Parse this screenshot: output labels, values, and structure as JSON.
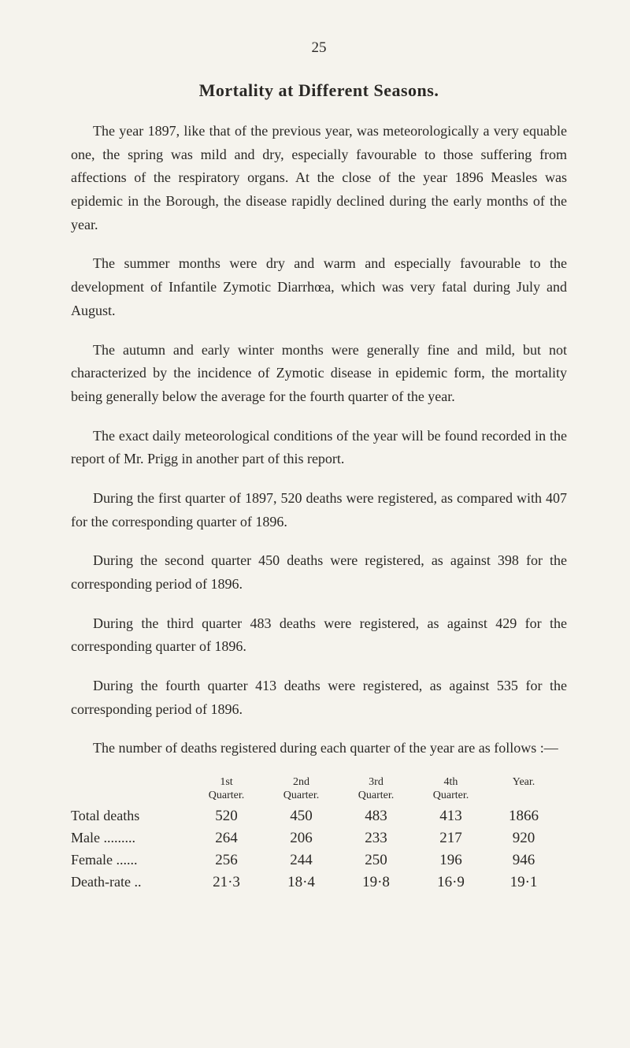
{
  "page_number": "25",
  "title": "Mortality at Different Seasons.",
  "paragraphs": [
    "The year 1897, like that of the previous year, was meteoro­logically a very equable one, the spring was mild and dry, especially favourable to those suffering from affections of the respiratory organs. At the close of the year 1896 Measles was epidemic in the Borough, the disease rapidly declined during the early months of the year.",
    "The summer months were dry and warm and especially favourable to the development of Infantile Zymotic Diarrhœa, which was very fatal during July and August.",
    "The autumn and early winter months were generally fine and mild, but not characterized by the incidence of Zymotic disease in epidemic form, the mortality being generally below the average for the fourth quarter of the year.",
    "The exact daily meteorological conditions of the year will be found recorded in the report of Mr. Prigg in another part of this report.",
    "During the first quarter of 1897, 520 deaths were registered, as compared with 407 for the corresponding quarter of 1896.",
    "During the second quarter 450 deaths were registered, as against 398 for the corresponding period of 1896.",
    "During the third quarter 483 deaths were registered, as against 429 for the corresponding quarter of 1896.",
    "During the fourth quarter 413 deaths were registered, as against 535 for the corresponding period of 1896.",
    "The number of deaths registered during each quarter of the year are as follows :—"
  ],
  "table": {
    "headers": [
      {
        "line1": "1st",
        "line2": "Quarter."
      },
      {
        "line1": "2nd",
        "line2": "Quarter."
      },
      {
        "line1": "3rd",
        "line2": "Quarter."
      },
      {
        "line1": "4th",
        "line2": "Quarter."
      },
      {
        "line1": "",
        "line2": "Year."
      }
    ],
    "rows": [
      {
        "label": "Total deaths",
        "values": [
          "520",
          "450",
          "483",
          "413",
          "1866"
        ]
      },
      {
        "label": "Male .........",
        "values": [
          "264",
          "206",
          "233",
          "217",
          "920"
        ]
      },
      {
        "label": "Female ......",
        "values": [
          "256",
          "244",
          "250",
          "196",
          "946"
        ]
      },
      {
        "label": "Death-rate ..",
        "values": [
          "21·3",
          "18·4",
          "19·8",
          "16·9",
          "19·1"
        ]
      }
    ]
  },
  "colors": {
    "background": "#f5f3ed",
    "text": "#2a2825"
  },
  "typography": {
    "body_fontsize": 18,
    "title_fontsize": 22,
    "header_fontsize": 14,
    "font_family": "Georgia, Times New Roman, serif"
  }
}
